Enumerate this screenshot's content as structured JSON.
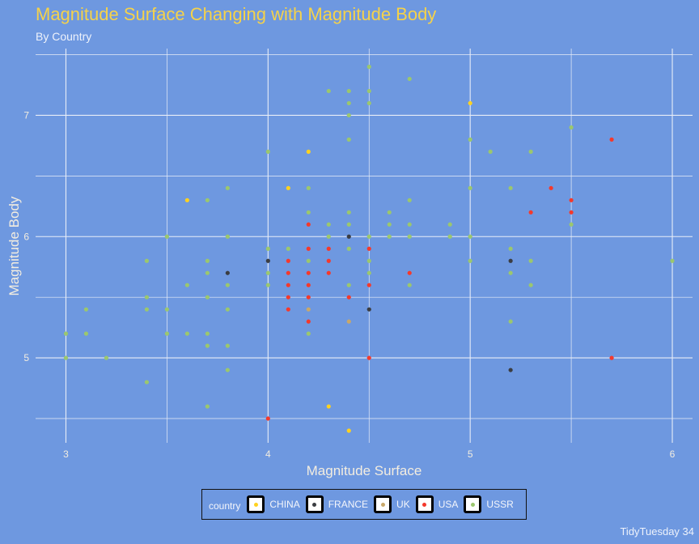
{
  "title": "Magnitude Surface Changing with Magnitude Body",
  "subtitle": "By Country",
  "caption": "TidyTuesday 34",
  "colors": {
    "background": "#6e98e0",
    "grid": "#e8edf7",
    "CHINA": "#ffd21f",
    "FRANCE": "#3b3d42",
    "UK": "#c9a86a",
    "USA": "#f4392c",
    "USSR": "#9bc76e"
  },
  "legend": {
    "title": "country",
    "items": [
      "CHINA",
      "FRANCE",
      "UK",
      "USA",
      "USSR"
    ]
  },
  "chart_data": {
    "type": "scatter",
    "title": "Magnitude Surface Changing with Magnitude Body",
    "subtitle": "By Country",
    "xlabel": "Magnitude Surface",
    "ylabel": "Magnitude Body",
    "xlim": [
      2.85,
      6.1
    ],
    "ylim": [
      4.3,
      7.55
    ],
    "xticks": [
      3,
      4,
      5,
      6
    ],
    "yticks": [
      5,
      6,
      7
    ],
    "xtick_labels": [
      "3",
      "4",
      "5",
      "6"
    ],
    "ytick_labels": [
      "5",
      "6",
      "7"
    ],
    "grid": true,
    "legend_position": "bottom",
    "series": [
      {
        "name": "CHINA",
        "points": [
          [
            3.6,
            6.3
          ],
          [
            4.1,
            6.4
          ],
          [
            4.2,
            6.7
          ],
          [
            4.3,
            4.6
          ],
          [
            4.4,
            4.4
          ],
          [
            5.0,
            7.1
          ]
        ]
      },
      {
        "name": "FRANCE",
        "points": [
          [
            3.8,
            5.7
          ],
          [
            4.0,
            5.8
          ],
          [
            4.4,
            6.0
          ],
          [
            4.5,
            5.4
          ],
          [
            5.2,
            5.8
          ],
          [
            5.2,
            4.9
          ]
        ]
      },
      {
        "name": "UK",
        "points": [
          [
            4.2,
            5.4
          ],
          [
            4.4,
            5.3
          ]
        ]
      },
      {
        "name": "USA",
        "points": [
          [
            4.0,
            4.5
          ],
          [
            4.1,
            5.8
          ],
          [
            4.1,
            5.7
          ],
          [
            4.1,
            5.6
          ],
          [
            4.1,
            5.5
          ],
          [
            4.1,
            5.4
          ],
          [
            4.2,
            6.1
          ],
          [
            4.2,
            5.9
          ],
          [
            4.2,
            5.7
          ],
          [
            4.2,
            5.6
          ],
          [
            4.2,
            5.5
          ],
          [
            4.2,
            5.3
          ],
          [
            4.3,
            5.9
          ],
          [
            4.3,
            5.8
          ],
          [
            4.3,
            5.7
          ],
          [
            4.4,
            5.5
          ],
          [
            4.5,
            5.9
          ],
          [
            4.5,
            5.6
          ],
          [
            4.5,
            5.0
          ],
          [
            4.7,
            5.7
          ],
          [
            5.3,
            6.2
          ],
          [
            5.4,
            6.4
          ],
          [
            5.5,
            6.3
          ],
          [
            5.5,
            6.2
          ],
          [
            5.7,
            6.8
          ],
          [
            5.7,
            5.0
          ]
        ]
      },
      {
        "name": "USSR",
        "points": [
          [
            3.0,
            5.2
          ],
          [
            3.0,
            5.0
          ],
          [
            3.1,
            5.4
          ],
          [
            3.1,
            5.2
          ],
          [
            3.2,
            5.0
          ],
          [
            3.4,
            5.8
          ],
          [
            3.4,
            5.5
          ],
          [
            3.4,
            5.4
          ],
          [
            3.4,
            4.8
          ],
          [
            3.5,
            6.0
          ],
          [
            3.5,
            5.4
          ],
          [
            3.5,
            5.2
          ],
          [
            3.6,
            5.6
          ],
          [
            3.6,
            5.2
          ],
          [
            3.7,
            6.3
          ],
          [
            3.7,
            5.8
          ],
          [
            3.7,
            5.7
          ],
          [
            3.7,
            5.5
          ],
          [
            3.7,
            5.2
          ],
          [
            3.7,
            5.1
          ],
          [
            3.7,
            4.6
          ],
          [
            3.8,
            6.4
          ],
          [
            3.8,
            6.0
          ],
          [
            3.8,
            5.6
          ],
          [
            3.8,
            5.4
          ],
          [
            3.8,
            5.1
          ],
          [
            3.8,
            4.9
          ],
          [
            4.0,
            6.7
          ],
          [
            4.0,
            5.9
          ],
          [
            4.0,
            5.7
          ],
          [
            4.0,
            5.6
          ],
          [
            4.1,
            5.9
          ],
          [
            4.2,
            6.4
          ],
          [
            4.2,
            6.2
          ],
          [
            4.2,
            5.8
          ],
          [
            4.2,
            5.2
          ],
          [
            4.3,
            7.2
          ],
          [
            4.3,
            6.1
          ],
          [
            4.3,
            6.0
          ],
          [
            4.4,
            7.2
          ],
          [
            4.4,
            7.1
          ],
          [
            4.4,
            7.0
          ],
          [
            4.4,
            6.8
          ],
          [
            4.4,
            6.2
          ],
          [
            4.4,
            6.1
          ],
          [
            4.4,
            5.9
          ],
          [
            4.4,
            5.6
          ],
          [
            4.5,
            7.4
          ],
          [
            4.5,
            7.2
          ],
          [
            4.5,
            7.1
          ],
          [
            4.5,
            6.0
          ],
          [
            4.5,
            5.8
          ],
          [
            4.5,
            5.7
          ],
          [
            4.6,
            6.2
          ],
          [
            4.6,
            6.1
          ],
          [
            4.6,
            6.0
          ],
          [
            4.7,
            7.3
          ],
          [
            4.7,
            6.3
          ],
          [
            4.7,
            6.1
          ],
          [
            4.7,
            6.0
          ],
          [
            4.7,
            5.6
          ],
          [
            4.9,
            6.1
          ],
          [
            4.9,
            6.0
          ],
          [
            5.0,
            6.8
          ],
          [
            5.0,
            6.4
          ],
          [
            5.0,
            6.0
          ],
          [
            5.0,
            5.8
          ],
          [
            5.1,
            6.7
          ],
          [
            5.2,
            6.4
          ],
          [
            5.2,
            5.9
          ],
          [
            5.2,
            5.7
          ],
          [
            5.2,
            5.3
          ],
          [
            5.3,
            6.7
          ],
          [
            5.3,
            5.8
          ],
          [
            5.3,
            5.6
          ],
          [
            5.5,
            6.9
          ],
          [
            5.5,
            6.1
          ],
          [
            6.0,
            5.8
          ]
        ]
      }
    ]
  }
}
